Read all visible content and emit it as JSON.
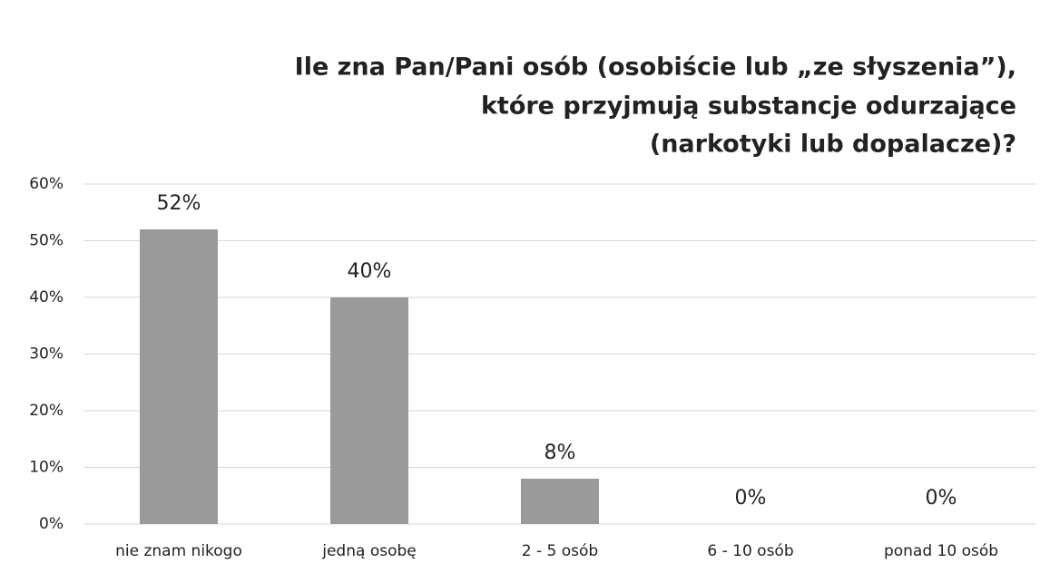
{
  "chart_data": {
    "type": "bar",
    "title": [
      "Ile zna Pan/Pani osób (osobiście lub „ze słyszenia”),",
      "które przyjmują substancje odurzające",
      "(narkotyki lub dopalacze)?"
    ],
    "categories": [
      "nie znam nikogo",
      "jedną osobę",
      "2 - 5 osób",
      "6 - 10 osób",
      "ponad 10 osób"
    ],
    "values": [
      52,
      40,
      8,
      0,
      0
    ],
    "value_labels": [
      "52%",
      "40%",
      "8%",
      "0%",
      "0%"
    ],
    "color": "#9a9a9a",
    "ylim": [
      0,
      60
    ],
    "yticks": [
      {
        "value": 0,
        "label": "0%"
      },
      {
        "value": 10,
        "label": "10%"
      },
      {
        "value": 20,
        "label": "20%"
      },
      {
        "value": 30,
        "label": "30%"
      },
      {
        "value": 40,
        "label": "40%"
      },
      {
        "value": 50,
        "label": "50%"
      },
      {
        "value": 60,
        "label": "60%"
      }
    ],
    "grid": true
  }
}
